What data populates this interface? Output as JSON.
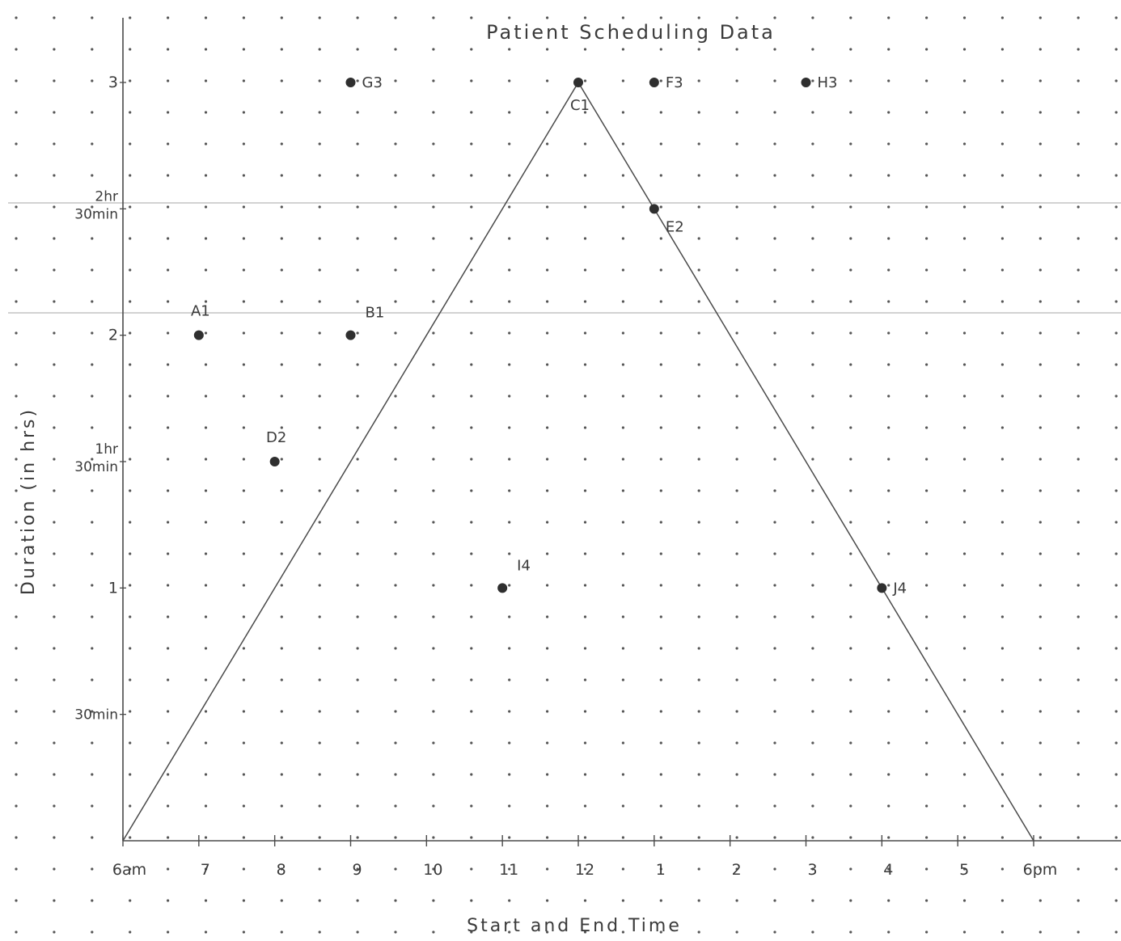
{
  "chart_data": {
    "type": "scatter",
    "title": "Patient Scheduling Data",
    "xlabel": "Start and End Time",
    "ylabel": "Duration (in hrs)",
    "x_tick_labels": [
      "6am",
      "7",
      "8",
      "9",
      "10",
      "11",
      "12",
      "1",
      "2",
      "3",
      "4",
      "5",
      "6pm"
    ],
    "y_tick_labels": [
      {
        "value": 0.5,
        "lines": [
          "30min"
        ]
      },
      {
        "value": 1,
        "lines": [
          "1"
        ]
      },
      {
        "value": 1.5,
        "lines": [
          "1hr",
          "30min"
        ]
      },
      {
        "value": 2,
        "lines": [
          "2"
        ]
      },
      {
        "value": 2.5,
        "lines": [
          "2hr",
          "30min"
        ]
      },
      {
        "value": 3,
        "lines": [
          "3"
        ]
      }
    ],
    "xlim": [
      6,
      18
    ],
    "ylim": [
      0,
      3
    ],
    "points": [
      {
        "label": "A1",
        "x": 7,
        "y": 2
      },
      {
        "label": "B1",
        "x": 9,
        "y": 2
      },
      {
        "label": "C1",
        "x": 12,
        "y": 3
      },
      {
        "label": "D2",
        "x": 8,
        "y": 1.5
      },
      {
        "label": "E2",
        "x": 13,
        "y": 2.5
      },
      {
        "label": "F3",
        "x": 13,
        "y": 3
      },
      {
        "label": "G3",
        "x": 9,
        "y": 3
      },
      {
        "label": "H3",
        "x": 15,
        "y": 3
      },
      {
        "label": "I4",
        "x": 11,
        "y": 1
      },
      {
        "label": "J4",
        "x": 16,
        "y": 1
      }
    ],
    "triangle": [
      {
        "x": 6,
        "y": 0
      },
      {
        "x": 12,
        "y": 3
      },
      {
        "x": 18,
        "y": 0
      }
    ],
    "guide_lines_y": [
      2.5,
      2.2
    ],
    "grid": "dots",
    "colors": {
      "ink": "#3a3a3a",
      "point": "#2f2f2f",
      "dot": "#555555",
      "guide": "#b8b8b8"
    }
  }
}
